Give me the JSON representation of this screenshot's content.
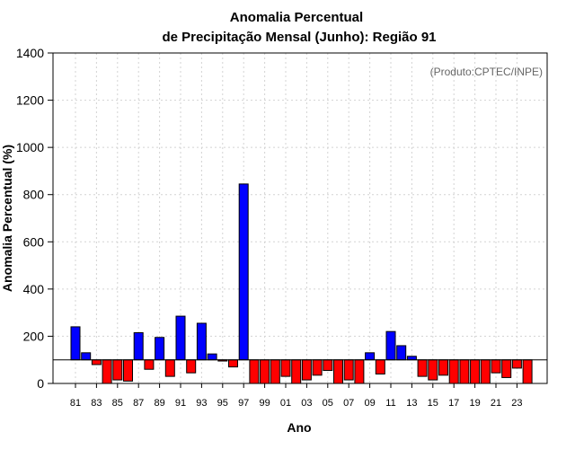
{
  "chart_data": {
    "type": "bar",
    "title_line1": "Anomalia Percentual",
    "title_line2": "de Precipitação Mensal (Junho): Região 91",
    "xlabel": "Ano",
    "ylabel": "Anomalia Percentual (%)",
    "credit": "(Produto:CPTEC/INPE)",
    "ylim": [
      0,
      1400
    ],
    "yticks": [
      0,
      200,
      400,
      600,
      800,
      1000,
      1200,
      1400
    ],
    "baseline": 100,
    "grid": true,
    "colors": {
      "positive": "#0000ff",
      "negative": "#ff0000",
      "edge": "#000000"
    },
    "categories": [
      "81",
      "82",
      "83",
      "84",
      "85",
      "86",
      "87",
      "88",
      "89",
      "90",
      "91",
      "92",
      "93",
      "94",
      "95",
      "96",
      "97",
      "98",
      "99",
      "00",
      "01",
      "02",
      "03",
      "04",
      "05",
      "06",
      "07",
      "08",
      "09",
      "10",
      "11",
      "12",
      "13",
      "14",
      "15",
      "16",
      "17",
      "18",
      "19",
      "20",
      "21",
      "22",
      "23",
      "24"
    ],
    "xtick_labels": [
      "81",
      "83",
      "85",
      "87",
      "89",
      "91",
      "93",
      "95",
      "97",
      "99",
      "01",
      "03",
      "05",
      "07",
      "09",
      "11",
      "13",
      "15",
      "17",
      "19",
      "21",
      "23"
    ],
    "values": [
      240,
      130,
      80,
      0,
      15,
      10,
      215,
      60,
      195,
      30,
      285,
      45,
      255,
      125,
      95,
      70,
      845,
      0,
      0,
      0,
      30,
      0,
      15,
      35,
      55,
      0,
      15,
      0,
      130,
      40,
      220,
      160,
      115,
      30,
      15,
      35,
      0,
      0,
      0,
      0,
      45,
      25,
      65,
      0
    ]
  }
}
